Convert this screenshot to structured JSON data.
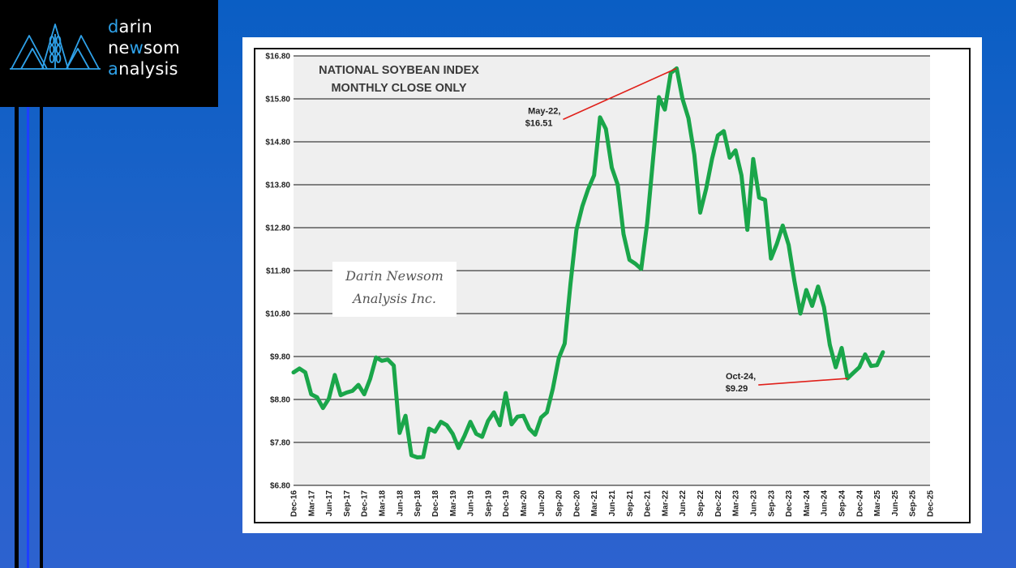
{
  "logo": {
    "line1_accent": "d",
    "line1_rest": "arin",
    "line2_pre": "ne",
    "line2_accent": "w",
    "line2_rest": "som",
    "line3_accent": "a",
    "line3_rest": "nalysis",
    "icon": "mountain-wheat-icon",
    "accent_color": "#2fa2ea"
  },
  "watermark": {
    "line1": "Darin Newsom",
    "line2": "Analysis Inc."
  },
  "chart_data": {
    "type": "line",
    "title": [
      "NATIONAL SOYBEAN INDEX",
      "MONTHLY CLOSE ONLY"
    ],
    "xlabel": "",
    "ylabel": "",
    "ylim": [
      6.8,
      16.8
    ],
    "ytick_values": [
      6.8,
      7.8,
      8.8,
      9.8,
      10.8,
      11.8,
      12.8,
      13.8,
      14.8,
      15.8,
      16.8
    ],
    "ytick_labels": [
      "$6.80",
      "$7.80",
      "$8.80",
      "$9.80",
      "$10.80",
      "$11.80",
      "$12.80",
      "$13.80",
      "$14.80",
      "$15.80",
      "$16.80"
    ],
    "xtick_labels": [
      "Dec-16",
      "Mar-17",
      "Jun-17",
      "Sep-17",
      "Dec-17",
      "Mar-18",
      "Jun-18",
      "Sep-18",
      "Dec-18",
      "Mar-19",
      "Jun-19",
      "Sep-19",
      "Dec-19",
      "Mar-20",
      "Jun-20",
      "Sep-20",
      "Dec-20",
      "Mar-21",
      "Jun-21",
      "Sep-21",
      "Dec-21",
      "Mar-22",
      "Jun-22",
      "Sep-22",
      "Dec-22",
      "Mar-23",
      "Jun-23",
      "Sep-23",
      "Dec-23",
      "Mar-24",
      "Jun-24",
      "Sep-24",
      "Dec-24",
      "Mar-25",
      "Jun-25",
      "Sep-25",
      "Dec-25"
    ],
    "x_start": "Dec-16",
    "x_step": "1 month",
    "line_color": "#1aa64a",
    "grid": "horizontal",
    "series": [
      {
        "values": [
          9.43,
          9.52,
          9.43,
          8.92,
          8.85,
          8.6,
          8.82,
          9.37,
          8.9,
          8.96,
          9.0,
          9.14,
          8.92,
          9.28,
          9.78,
          9.7,
          9.73,
          9.59,
          8.02,
          8.42,
          7.5,
          7.45,
          7.46,
          8.12,
          8.05,
          8.28,
          8.2,
          8.0,
          7.67,
          7.95,
          8.28,
          8.0,
          7.93,
          8.3,
          8.5,
          8.2,
          8.95,
          8.22,
          8.4,
          8.42,
          8.12,
          7.98,
          8.38,
          8.5,
          9.05,
          9.76,
          10.1,
          11.5,
          12.75,
          13.3,
          13.7,
          14.02,
          15.37,
          15.1,
          14.2,
          13.8,
          12.65,
          12.05,
          11.96,
          11.84,
          12.9,
          14.4,
          15.84,
          15.55,
          16.4,
          16.51,
          15.8,
          15.35,
          14.5,
          13.15,
          13.7,
          14.4,
          14.95,
          15.05,
          14.43,
          14.6,
          14.02,
          12.75,
          14.4,
          13.5,
          13.45,
          12.08,
          12.42,
          12.85,
          12.4,
          11.55,
          10.8,
          11.35,
          10.98,
          11.43,
          10.95,
          10.07,
          9.55,
          10.0,
          9.29,
          9.42,
          9.55,
          9.85,
          9.58,
          9.6,
          9.9
        ]
      }
    ],
    "annotations": [
      {
        "label_line1": "May-22,",
        "label_line2": "$16.51",
        "x": "May-22",
        "y": 16.51
      },
      {
        "label_line1": "Oct-24,",
        "label_line2": "$9.29",
        "x": "Oct-24",
        "y": 9.29
      }
    ],
    "annotation_color": "#e0201a"
  }
}
